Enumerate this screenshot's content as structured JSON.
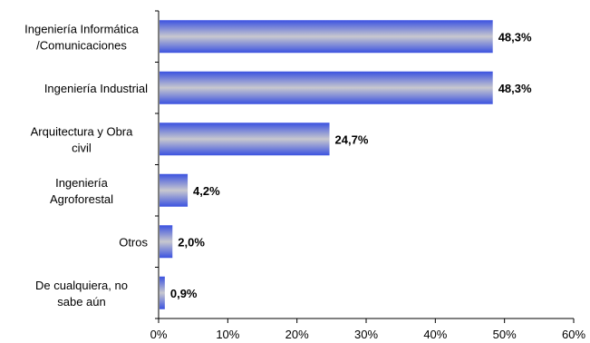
{
  "chart_data": {
    "type": "bar",
    "orientation": "horizontal",
    "categories": [
      [
        "Ingeniería Informática",
        "/Comunicaciones"
      ],
      [
        "Ingeniería Industrial"
      ],
      [
        "Arquitectura y Obra",
        "civil"
      ],
      [
        "Ingeniería",
        "Agroforestal"
      ],
      [
        "Otros"
      ],
      [
        "De cualquiera, no",
        "sabe aún"
      ]
    ],
    "values": [
      48.3,
      48.3,
      24.7,
      4.2,
      2.0,
      0.9
    ],
    "data_labels": [
      "48,3%",
      "48,3%",
      "24,7%",
      "4,2%",
      "2,0%",
      "0,9%"
    ],
    "x_ticks": [
      "0%",
      "10%",
      "20%",
      "30%",
      "40%",
      "50%",
      "60%"
    ],
    "xlim": [
      0,
      60
    ],
    "title": "",
    "xlabel": "",
    "ylabel": "",
    "grid": false,
    "legend": "none",
    "bar_colors": {
      "edge": "#3b52e0",
      "center": "#c8c8cf"
    }
  }
}
